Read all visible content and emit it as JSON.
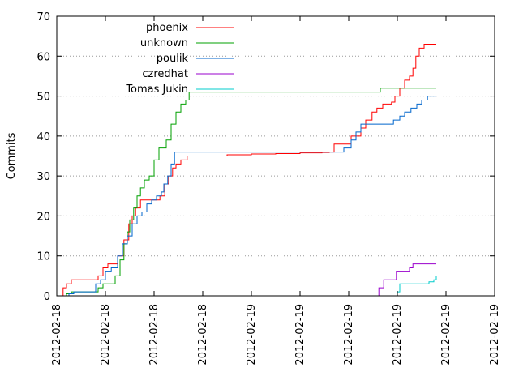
{
  "chart_data": {
    "type": "line",
    "title": "",
    "xlabel": "",
    "ylabel": "Commits",
    "ylim": [
      0,
      70
    ],
    "yticks": [
      0,
      10,
      20,
      30,
      40,
      50,
      60,
      70
    ],
    "xlim": [
      0,
      9
    ],
    "x_tick_labels": [
      "2012-02-18",
      "2012-02-18",
      "2012-02-18",
      "2012-02-18",
      "2012-02-19",
      "2012-02-19",
      "2012-02-19",
      "2012-02-19",
      "2012-02-19",
      "2012-02-19"
    ],
    "grid": "horizontal-dotted",
    "legend_position": "top-left",
    "series": [
      {
        "name": "phoenix",
        "color": "#ff0000",
        "points": [
          [
            0.08,
            0
          ],
          [
            0.13,
            2
          ],
          [
            0.2,
            3
          ],
          [
            0.3,
            4
          ],
          [
            0.5,
            4
          ],
          [
            0.7,
            4
          ],
          [
            0.85,
            5
          ],
          [
            0.95,
            7
          ],
          [
            1.05,
            8
          ],
          [
            1.15,
            8
          ],
          [
            1.25,
            10
          ],
          [
            1.38,
            14
          ],
          [
            1.48,
            18
          ],
          [
            1.55,
            20
          ],
          [
            1.62,
            22
          ],
          [
            1.72,
            24
          ],
          [
            1.85,
            24
          ],
          [
            2.0,
            24
          ],
          [
            2.12,
            25
          ],
          [
            2.22,
            28
          ],
          [
            2.3,
            30
          ],
          [
            2.38,
            32
          ],
          [
            2.45,
            33
          ],
          [
            2.55,
            34
          ],
          [
            2.68,
            35
          ],
          [
            3.0,
            35
          ],
          [
            3.5,
            35.3
          ],
          [
            4.0,
            35.5
          ],
          [
            4.5,
            35.6
          ],
          [
            5.0,
            35.8
          ],
          [
            5.45,
            35.9
          ],
          [
            5.6,
            36
          ],
          [
            5.7,
            38
          ],
          [
            5.95,
            38
          ],
          [
            6.05,
            40
          ],
          [
            6.25,
            42
          ],
          [
            6.35,
            44
          ],
          [
            6.48,
            46
          ],
          [
            6.58,
            47
          ],
          [
            6.7,
            48
          ],
          [
            6.88,
            48.5
          ],
          [
            6.95,
            50
          ],
          [
            7.05,
            52
          ],
          [
            7.15,
            54
          ],
          [
            7.25,
            55
          ],
          [
            7.32,
            57
          ],
          [
            7.38,
            60
          ],
          [
            7.45,
            62
          ],
          [
            7.55,
            63
          ],
          [
            7.8,
            63
          ]
        ]
      },
      {
        "name": "unknown",
        "color": "#00a000",
        "points": [
          [
            0.12,
            0
          ],
          [
            0.2,
            0.5
          ],
          [
            0.3,
            1
          ],
          [
            0.5,
            1
          ],
          [
            0.7,
            1
          ],
          [
            0.85,
            2
          ],
          [
            0.95,
            3
          ],
          [
            1.1,
            3
          ],
          [
            1.2,
            5
          ],
          [
            1.3,
            9
          ],
          [
            1.38,
            13
          ],
          [
            1.45,
            16
          ],
          [
            1.5,
            19
          ],
          [
            1.58,
            22
          ],
          [
            1.65,
            25
          ],
          [
            1.72,
            27
          ],
          [
            1.8,
            29
          ],
          [
            1.9,
            30
          ],
          [
            2.0,
            34
          ],
          [
            2.1,
            37
          ],
          [
            2.25,
            39
          ],
          [
            2.35,
            43
          ],
          [
            2.45,
            46
          ],
          [
            2.55,
            48
          ],
          [
            2.65,
            49
          ],
          [
            2.72,
            51
          ],
          [
            3.0,
            51
          ],
          [
            4.0,
            51
          ],
          [
            5.0,
            51
          ],
          [
            6.0,
            51
          ],
          [
            6.5,
            51
          ],
          [
            6.65,
            52
          ],
          [
            7.0,
            52
          ],
          [
            7.8,
            52
          ]
        ]
      },
      {
        "name": "poulik",
        "color": "#0066cc",
        "points": [
          [
            0.12,
            0
          ],
          [
            0.25,
            0.5
          ],
          [
            0.35,
            1
          ],
          [
            0.5,
            1
          ],
          [
            0.65,
            1
          ],
          [
            0.72,
            1
          ],
          [
            0.8,
            3
          ],
          [
            0.9,
            4
          ],
          [
            1.0,
            6
          ],
          [
            1.12,
            7
          ],
          [
            1.25,
            10
          ],
          [
            1.35,
            13
          ],
          [
            1.45,
            15
          ],
          [
            1.55,
            18
          ],
          [
            1.65,
            20
          ],
          [
            1.75,
            21
          ],
          [
            1.85,
            23
          ],
          [
            1.95,
            24
          ],
          [
            2.05,
            25
          ],
          [
            2.15,
            26
          ],
          [
            2.2,
            28
          ],
          [
            2.28,
            30
          ],
          [
            2.35,
            33
          ],
          [
            2.42,
            36
          ],
          [
            2.6,
            36
          ],
          [
            3.0,
            36
          ],
          [
            4.0,
            36
          ],
          [
            5.0,
            36
          ],
          [
            5.8,
            36
          ],
          [
            5.9,
            37
          ],
          [
            6.05,
            39
          ],
          [
            6.15,
            41
          ],
          [
            6.25,
            43
          ],
          [
            6.45,
            43
          ],
          [
            6.8,
            43
          ],
          [
            6.92,
            44
          ],
          [
            7.05,
            45
          ],
          [
            7.15,
            46
          ],
          [
            7.28,
            47
          ],
          [
            7.4,
            48
          ],
          [
            7.5,
            49
          ],
          [
            7.62,
            50
          ],
          [
            7.8,
            50
          ]
        ]
      },
      {
        "name": "czredhat",
        "color": "#9900cc",
        "points": [
          [
            6.55,
            0
          ],
          [
            6.62,
            2
          ],
          [
            6.72,
            4
          ],
          [
            6.92,
            4
          ],
          [
            6.98,
            6
          ],
          [
            7.2,
            6
          ],
          [
            7.25,
            7
          ],
          [
            7.32,
            8
          ],
          [
            7.8,
            8
          ]
        ]
      },
      {
        "name": "Tomas Jukin",
        "color": "#00cccc",
        "points": [
          [
            6.95,
            0
          ],
          [
            7.0,
            1
          ],
          [
            7.05,
            3
          ],
          [
            7.55,
            3
          ],
          [
            7.65,
            3.5
          ],
          [
            7.75,
            4
          ],
          [
            7.8,
            5
          ]
        ]
      }
    ]
  }
}
